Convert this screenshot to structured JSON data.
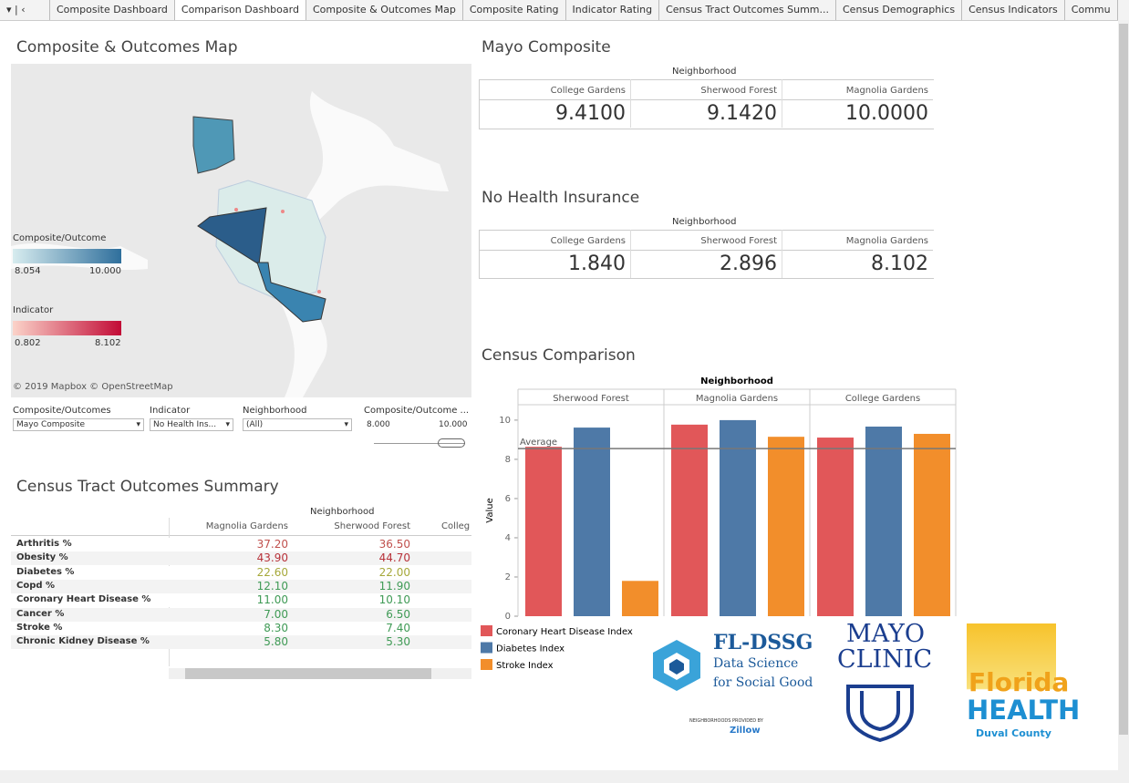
{
  "tabs": [
    "Composite Dashboard",
    "Comparison Dashboard",
    "Composite & Outcomes Map",
    "Composite Rating",
    "Indicator Rating",
    "Census Tract Outcomes Summ...",
    "Census Demographics",
    "Census Indicators",
    "Commu"
  ],
  "map": {
    "title": "Composite & Outcomes Map",
    "legend_composite": {
      "title": "Composite/Outcome",
      "min": "8.054",
      "max": "10.000"
    },
    "legend_indicator": {
      "title": "Indicator",
      "min": "0.802",
      "max": "8.102"
    },
    "credit": "© 2019 Mapbox © OpenStreetMap"
  },
  "filters": [
    {
      "label": "Composite/Outcomes",
      "value": "Mayo Composite"
    },
    {
      "label": "Indicator",
      "value": "No Health Ins..."
    },
    {
      "label": "Neighborhood",
      "value": "(All)"
    },
    {
      "label": "Composite/Outcome ...",
      "min": "8.000",
      "max": "10.000"
    }
  ],
  "mayo_composite": {
    "title": "Mayo Composite",
    "header": "Neighborhood",
    "columns": [
      "College Gardens",
      "Sherwood Forest",
      "Magnolia Gardens"
    ],
    "values": [
      "9.4100",
      "9.1420",
      "10.0000"
    ]
  },
  "no_health_insurance": {
    "title": "No Health Insurance",
    "header": "Neighborhood",
    "columns": [
      "College Gardens",
      "Sherwood Forest",
      "Magnolia Gardens"
    ],
    "values": [
      "1.840",
      "2.896",
      "8.102"
    ]
  },
  "outcomes": {
    "title": "Census Tract Outcomes Summary",
    "header": "Neighborhood",
    "columns": [
      "Magnolia Gardens",
      "Sherwood Forest",
      "Colleg"
    ],
    "rows": [
      {
        "label": "Arthritis %",
        "values": [
          "37.20",
          "36.50"
        ],
        "color": "#c0504d"
      },
      {
        "label": "Obesity %",
        "values": [
          "43.90",
          "44.70"
        ],
        "color": "#b8323a"
      },
      {
        "label": "Diabetes %",
        "values": [
          "22.60",
          "22.00"
        ],
        "color": "#a6a83a"
      },
      {
        "label": "Copd %",
        "values": [
          "12.10",
          "11.90"
        ],
        "color": "#3f9a55"
      },
      {
        "label": "Coronary Heart Disease %",
        "values": [
          "11.00",
          "10.10"
        ],
        "color": "#3f9a55"
      },
      {
        "label": "Cancer %",
        "values": [
          "7.00",
          "6.50"
        ],
        "color": "#3f9a55"
      },
      {
        "label": "Stroke %",
        "values": [
          "8.30",
          "7.40"
        ],
        "color": "#3f9a55"
      },
      {
        "label": "Chronic Kidney Disease %",
        "values": [
          "5.80",
          "5.30"
        ],
        "color": "#3f9a55"
      }
    ]
  },
  "census_comparison": {
    "type": "bar",
    "title": "Census Comparison",
    "header": "Neighborhood",
    "categories": [
      "Sherwood Forest",
      "Magnolia Gardens",
      "College Gardens"
    ],
    "y_label": "Value",
    "series": [
      {
        "name": "Coronary Heart Disease Index",
        "color": "#e15759",
        "values": [
          8.64,
          9.77,
          9.11
        ]
      },
      {
        "name": "Diabetes Index",
        "color": "#4e79a7",
        "values": [
          9.62,
          10.0,
          9.67
        ]
      },
      {
        "name": "Stroke Index",
        "color": "#f28e2b",
        "values": [
          1.8,
          9.15,
          9.3
        ]
      }
    ],
    "reference_line": {
      "label": "Average",
      "value": 8.55
    },
    "ylim": [
      0,
      10.6
    ],
    "yticks": [
      0,
      2,
      4,
      6,
      8,
      10
    ]
  },
  "logos": {
    "fldssg": [
      "FL-DSSG",
      "Data Science",
      "for Social Good"
    ],
    "zillow": [
      "NEIGHBORHOODS PROVIDED BY",
      "Zillow"
    ],
    "mayo": [
      "MAYO",
      "CLINIC"
    ],
    "florida": [
      "Florida",
      "HEALTH",
      "Duval County"
    ]
  }
}
